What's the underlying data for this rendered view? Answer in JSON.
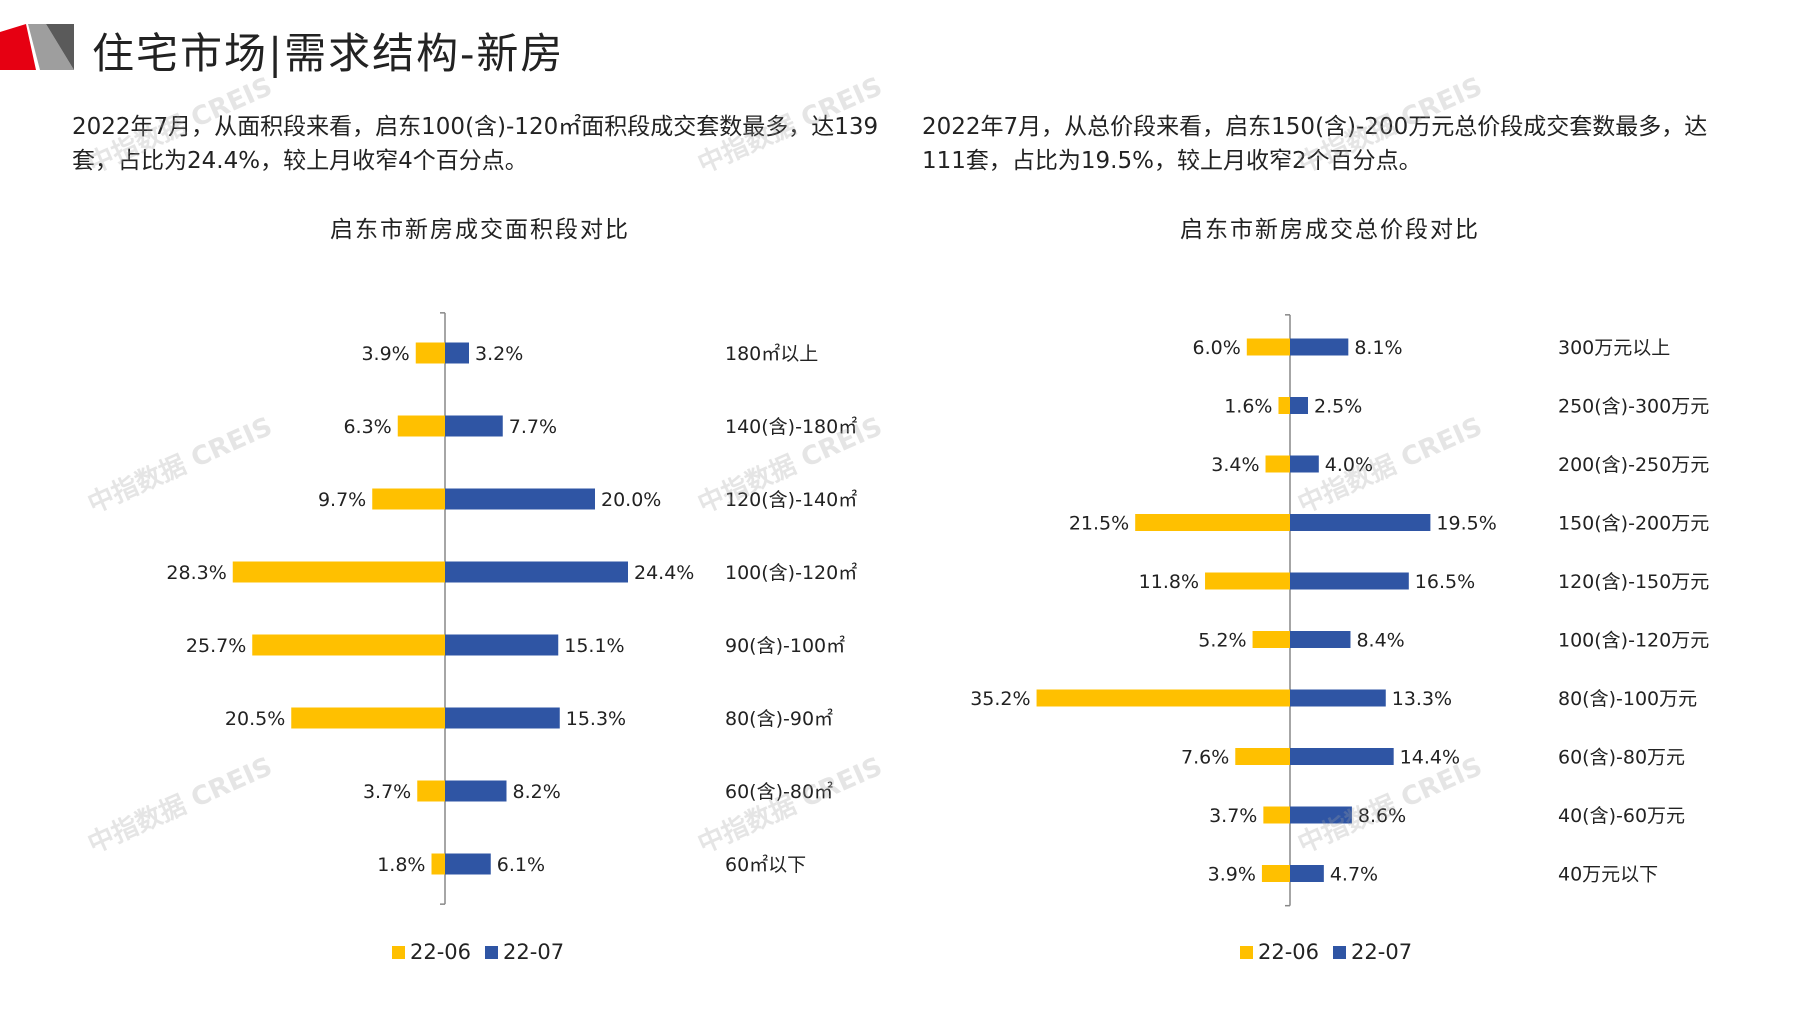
{
  "page": {
    "title": "住宅市场|需求结构-新房",
    "watermark": "中指数据 CREIS"
  },
  "left": {
    "description": "2022年7月，从面积段来看，启东100(含)-120㎡面积段成交套数最多，达139套，占比为24.4%，较上月收窄4个百分点。",
    "chart_title": "启东市新房成交面积段对比"
  },
  "right": {
    "description": "2022年7月，从总价段来看，启东150(含)-200万元总价段成交套数最多，达111套，占比为19.5%，较上月收窄2个百分点。",
    "chart_title": "启东市新房成交总价段对比"
  },
  "legend": {
    "series1": "22-06",
    "series2": "22-07"
  },
  "colors": {
    "series1": "#FFC000",
    "series2": "#2F55A4",
    "brand_red": "#E60012",
    "brand_grey": "#9E9E9E"
  },
  "chart_data": [
    {
      "type": "bar",
      "orientation": "butterfly-horizontal",
      "title": "启东市新房成交面积段对比",
      "categories": [
        "180㎡以上",
        "140(含)-180㎡",
        "120(含)-140㎡",
        "100(含)-120㎡",
        "90(含)-100㎡",
        "80(含)-90㎡",
        "60(含)-80㎡",
        "60㎡以下"
      ],
      "series": [
        {
          "name": "22-06",
          "values": [
            3.9,
            6.3,
            9.7,
            28.3,
            25.7,
            20.5,
            3.7,
            1.8
          ],
          "labels": [
            "3.9%",
            "6.3%",
            "9.7%",
            "28.3%",
            "25.7%",
            "20.5%",
            "3.7%",
            "1.8%"
          ]
        },
        {
          "name": "22-07",
          "values": [
            3.2,
            7.7,
            20.0,
            24.4,
            15.1,
            15.3,
            8.2,
            6.1
          ],
          "labels": [
            "3.2%",
            "7.7%",
            "20.0%",
            "24.4%",
            "15.1%",
            "15.3%",
            "8.2%",
            "6.1%"
          ]
        }
      ],
      "legend": "bottom",
      "grid": false
    },
    {
      "type": "bar",
      "orientation": "butterfly-horizontal",
      "title": "启东市新房成交总价段对比",
      "categories": [
        "300万元以上",
        "250(含)-300万元",
        "200(含)-250万元",
        "150(含)-200万元",
        "120(含)-150万元",
        "100(含)-120万元",
        "80(含)-100万元",
        "60(含)-80万元",
        "40(含)-60万元",
        "40万元以下"
      ],
      "series": [
        {
          "name": "22-06",
          "values": [
            6.0,
            1.6,
            3.4,
            21.5,
            11.8,
            5.2,
            35.2,
            7.6,
            3.7,
            3.9
          ],
          "labels": [
            "6.0%",
            "1.6%",
            "3.4%",
            "21.5%",
            "11.8%",
            "5.2%",
            "35.2%",
            "7.6%",
            "3.7%",
            "3.9%"
          ]
        },
        {
          "name": "22-07",
          "values": [
            8.1,
            2.5,
            4.0,
            19.5,
            16.5,
            8.4,
            13.3,
            14.4,
            8.6,
            4.7
          ],
          "labels": [
            "8.1%",
            "2.5%",
            "4.0%",
            "19.5%",
            "16.5%",
            "8.4%",
            "13.3%",
            "14.4%",
            "8.6%",
            "4.7%"
          ]
        }
      ],
      "legend": "bottom",
      "grid": false
    }
  ]
}
